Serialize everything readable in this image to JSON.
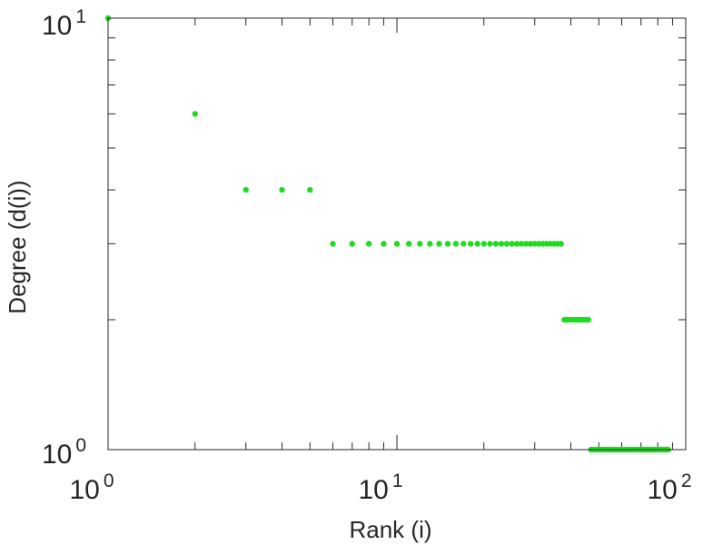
{
  "chart_data": {
    "type": "scatter",
    "xscale": "log",
    "yscale": "log",
    "xlim": [
      1,
      100
    ],
    "ylim": [
      1,
      10
    ],
    "xlabel": "Rank (i)",
    "ylabel": "Degree (d(i))",
    "grid": false,
    "x_ticks": [
      {
        "base": "10",
        "exp": "0",
        "value": 1
      },
      {
        "base": "10",
        "exp": "1",
        "value": 10
      },
      {
        "base": "10",
        "exp": "2",
        "value": 100
      }
    ],
    "y_ticks": [
      {
        "base": "10",
        "exp": "0",
        "value": 1
      },
      {
        "base": "10",
        "exp": "1",
        "value": 10
      }
    ],
    "marker_color": "#1fdc1f",
    "series": [
      {
        "groups": [
          {
            "degree": 10,
            "rank_from": 1,
            "rank_to": 1
          },
          {
            "degree": 6,
            "rank_from": 2,
            "rank_to": 2
          },
          {
            "degree": 4,
            "rank_from": 3,
            "rank_to": 5
          },
          {
            "degree": 3,
            "rank_from": 6,
            "rank_to": 37
          },
          {
            "degree": 2,
            "rank_from": 38,
            "rank_to": 46
          },
          {
            "degree": 1,
            "rank_from": 47,
            "rank_to": 87
          }
        ]
      }
    ]
  }
}
